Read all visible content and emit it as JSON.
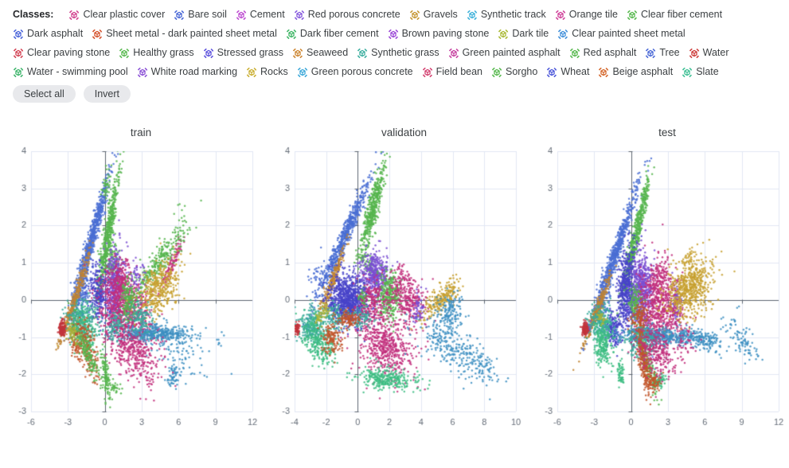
{
  "legend": {
    "label": "Classes:",
    "select_all_label": "Select all",
    "invert_label": "Invert",
    "items": [
      {
        "name": "Clear plastic cover",
        "color": "#d13f8e"
      },
      {
        "name": "Bare soil",
        "color": "#4766d6"
      },
      {
        "name": "Cement",
        "color": "#bd4ad1"
      },
      {
        "name": "Red porous concrete",
        "color": "#8558dd"
      },
      {
        "name": "Gravels",
        "color": "#c49530"
      },
      {
        "name": "Synthetic track",
        "color": "#3cb0d9"
      },
      {
        "name": "Orange tile",
        "color": "#cf3f99"
      },
      {
        "name": "Clear fiber cement",
        "color": "#55b84c"
      },
      {
        "name": "Dark asphalt",
        "color": "#4762d9"
      },
      {
        "name": "Sheet metal - dark painted sheet metal",
        "color": "#d4502a"
      },
      {
        "name": "Dark fiber cement",
        "color": "#3db564"
      },
      {
        "name": "Brown paving stone",
        "color": "#9a46d6"
      },
      {
        "name": "Dark tile",
        "color": "#a9b831"
      },
      {
        "name": "Clear painted sheet metal",
        "color": "#3e8ed9"
      },
      {
        "name": "Clear paving stone",
        "color": "#d24052"
      },
      {
        "name": "Healthy grass",
        "color": "#55b84c"
      },
      {
        "name": "Stressed grass",
        "color": "#5b50dd"
      },
      {
        "name": "Seaweed",
        "color": "#cc842e"
      },
      {
        "name": "Synthetic grass",
        "color": "#39ad9e"
      },
      {
        "name": "Green painted asphalt",
        "color": "#c53f9f"
      },
      {
        "name": "Red asphalt",
        "color": "#55b84c"
      },
      {
        "name": "Tree",
        "color": "#4766d6"
      },
      {
        "name": "Water",
        "color": "#cc3a38"
      },
      {
        "name": "Water - swimming pool",
        "color": "#3cb46a"
      },
      {
        "name": "White road marking",
        "color": "#8a4fd6"
      },
      {
        "name": "Rocks",
        "color": "#c9ae2f"
      },
      {
        "name": "Green porous concrete",
        "color": "#3aa7d9"
      },
      {
        "name": "Field bean",
        "color": "#d23f6f"
      },
      {
        "name": "Sorgho",
        "color": "#55b84c"
      },
      {
        "name": "Wheat",
        "color": "#4a55d9"
      },
      {
        "name": "Beige asphalt",
        "color": "#d4662a"
      },
      {
        "name": "Slate",
        "color": "#3bbf93"
      }
    ]
  },
  "style": {
    "grid_color": "#e2e7f3",
    "zero_line_color": "#5d6570",
    "tick_label_color": "#666e79",
    "point_radius": 1.25,
    "point_alpha": 0.85,
    "palette": {
      "blue": "#4a6fd4",
      "green": "#56b54e",
      "bronze": "#c08433",
      "gold": "#c7a02f",
      "purple": "#7a4fd2",
      "indigo": "#4843c9",
      "magenta": "#c22f7d",
      "steel": "#3d8fc2",
      "teal": "#3aa99b",
      "mint": "#3dbd82",
      "red": "#c2343c",
      "orangered": "#c2562c",
      "olive": "#a8b33a"
    }
  },
  "chart_data": {
    "type": "scatter",
    "note": "2-D embedding scatter of pixel classes, split by dataset partition. Dense point clouds are encoded as generative gaussian clusters.",
    "cluster_format": [
      "color",
      "cx",
      "cy",
      "sigma_along",
      "sigma_across",
      "rot_deg",
      "n_points"
    ],
    "legend_position": "top",
    "grid": true,
    "charts": [
      {
        "title": "train",
        "xlim": [
          -6,
          12
        ],
        "ylim": [
          -3,
          4
        ],
        "xticks": [
          -6,
          -3,
          0,
          3,
          6,
          9,
          12
        ],
        "yticks": [
          -3,
          -2,
          -1,
          0,
          1,
          2,
          3,
          4
        ],
        "clusters": [
          [
            "blue",
            -1.1,
            1.6,
            1.15,
            0.14,
            50,
            650
          ],
          [
            "blue",
            -1.9,
            0.25,
            0.45,
            0.3,
            50,
            180
          ],
          [
            "green",
            0.25,
            1.7,
            1.0,
            0.16,
            64,
            480
          ],
          [
            "green",
            0.55,
            1.1,
            0.3,
            0.45,
            64,
            140
          ],
          [
            "green",
            0.1,
            3.1,
            0.25,
            0.12,
            55,
            40
          ],
          [
            "bronze",
            -2.6,
            -0.15,
            0.8,
            0.09,
            42,
            240
          ],
          [
            "bronze",
            -1.7,
            0.9,
            0.5,
            0.1,
            42,
            50
          ],
          [
            "purple",
            0.8,
            0.4,
            0.5,
            0.35,
            80,
            420
          ],
          [
            "indigo",
            -0.55,
            0.2,
            0.35,
            0.4,
            70,
            240
          ],
          [
            "magenta",
            1.6,
            -0.35,
            1.05,
            0.5,
            -8,
            850
          ],
          [
            "magenta",
            1.15,
            0.55,
            0.5,
            0.28,
            0,
            180
          ],
          [
            "magenta",
            5.5,
            1.0,
            0.55,
            0.12,
            35,
            110
          ],
          [
            "green",
            4.4,
            1.0,
            1.2,
            0.17,
            23,
            260
          ],
          [
            "green",
            6.4,
            2.1,
            0.35,
            0.3,
            0,
            20
          ],
          [
            "green",
            1.9,
            0.0,
            0.32,
            0.3,
            0,
            170
          ],
          [
            "gold",
            4.4,
            0.3,
            0.85,
            0.33,
            12,
            380
          ],
          [
            "gold",
            -2.5,
            -0.72,
            0.4,
            0.16,
            10,
            80
          ],
          [
            "steel",
            4.0,
            -0.92,
            1.6,
            0.11,
            0,
            400
          ],
          [
            "steel",
            5.6,
            -1.25,
            1.4,
            0.35,
            -10,
            110
          ],
          [
            "steel",
            5.6,
            -2.05,
            0.28,
            0.14,
            0,
            60
          ],
          [
            "steel",
            9.3,
            -1.15,
            0.15,
            0.08,
            0,
            6
          ],
          [
            "teal",
            -1.9,
            -0.55,
            0.7,
            0.26,
            0,
            240
          ],
          [
            "teal",
            2.9,
            -0.5,
            0.5,
            0.25,
            0,
            130
          ],
          [
            "teal",
            0.9,
            -0.7,
            0.4,
            0.2,
            0,
            90
          ],
          [
            "mint",
            -1.6,
            -0.85,
            0.5,
            0.3,
            -20,
            150
          ],
          [
            "red",
            -3.5,
            -0.78,
            0.14,
            0.1,
            0,
            110
          ],
          [
            "orangered",
            -1.4,
            -1.35,
            0.5,
            0.28,
            -40,
            170
          ],
          [
            "orangered",
            -2.3,
            -1.15,
            0.3,
            0.22,
            -30,
            80
          ],
          [
            "green",
            -1.4,
            -1.45,
            0.7,
            0.16,
            -35,
            150
          ],
          [
            "green",
            0.1,
            -2.0,
            0.38,
            0.13,
            -70,
            110
          ],
          [
            "green",
            0.85,
            -2.35,
            0.2,
            0.1,
            0,
            25
          ],
          [
            "magenta",
            2.2,
            -1.45,
            0.95,
            0.36,
            -14,
            260
          ],
          [
            "magenta",
            4.0,
            -1.6,
            0.7,
            0.4,
            0,
            50
          ],
          [
            "purple",
            2.6,
            0.65,
            0.3,
            0.2,
            20,
            45
          ],
          [
            "olive",
            -2.6,
            -0.9,
            0.2,
            0.12,
            0,
            40
          ]
        ]
      },
      {
        "title": "validation",
        "xlim": [
          -4,
          10
        ],
        "ylim": [
          -3,
          4
        ],
        "xticks": [
          -4,
          -2,
          0,
          2,
          4,
          6,
          8,
          10
        ],
        "yticks": [
          -3,
          -2,
          -1,
          0,
          1,
          2,
          3,
          4
        ],
        "clusters": [
          [
            "blue",
            -0.85,
            1.7,
            1.1,
            0.13,
            44,
            620
          ],
          [
            "blue",
            -2.6,
            0.55,
            0.3,
            0.25,
            44,
            45
          ],
          [
            "green",
            0.95,
            2.45,
            0.62,
            0.16,
            58,
            430
          ],
          [
            "green",
            0.55,
            1.0,
            0.14,
            0.35,
            70,
            70
          ],
          [
            "bronze",
            -1.55,
            0.55,
            0.55,
            0.1,
            47,
            210
          ],
          [
            "indigo",
            -0.6,
            0.0,
            0.62,
            0.34,
            0,
            850
          ],
          [
            "purple",
            1.1,
            0.68,
            0.45,
            0.3,
            0,
            420
          ],
          [
            "green",
            2.0,
            0.12,
            0.38,
            0.3,
            0,
            320
          ],
          [
            "green",
            0.35,
            0.02,
            0.15,
            0.12,
            0,
            50
          ],
          [
            "magenta",
            0.9,
            -0.12,
            0.5,
            0.3,
            0,
            240
          ],
          [
            "magenta",
            3.2,
            0.0,
            0.6,
            0.35,
            -10,
            300
          ],
          [
            "magenta",
            1.75,
            -1.25,
            0.95,
            0.38,
            -8,
            520
          ],
          [
            "magenta",
            2.7,
            0.6,
            0.2,
            0.15,
            0,
            35
          ],
          [
            "purple",
            3.85,
            -0.25,
            0.2,
            0.18,
            0,
            60
          ],
          [
            "gold",
            5.3,
            0.02,
            0.6,
            0.16,
            20,
            220
          ],
          [
            "steel",
            5.85,
            -0.35,
            0.38,
            0.26,
            0,
            160
          ],
          [
            "steel",
            6.0,
            -1.3,
            1.3,
            0.3,
            -14,
            260
          ],
          [
            "steel",
            7.9,
            -1.8,
            0.4,
            0.2,
            -10,
            40
          ],
          [
            "teal",
            -2.9,
            -0.7,
            0.45,
            0.28,
            0,
            240
          ],
          [
            "teal",
            -1.5,
            -0.5,
            0.4,
            0.2,
            0,
            120
          ],
          [
            "teal",
            0.2,
            -0.5,
            0.3,
            0.14,
            0,
            70
          ],
          [
            "mint",
            -2.6,
            -1.05,
            0.5,
            0.28,
            -15,
            200
          ],
          [
            "mint",
            1.8,
            -2.12,
            0.95,
            0.14,
            -4,
            300
          ],
          [
            "mint",
            -1.9,
            -1.3,
            0.3,
            0.2,
            0,
            60
          ],
          [
            "red",
            -3.85,
            -0.8,
            0.1,
            0.08,
            0,
            70
          ],
          [
            "orangered",
            -1.6,
            -1.05,
            0.35,
            0.2,
            0,
            130
          ],
          [
            "orangered",
            -0.55,
            -0.5,
            0.4,
            0.13,
            0,
            110
          ],
          [
            "olive",
            -2.1,
            -0.3,
            0.15,
            0.1,
            0,
            30
          ],
          [
            "olive",
            -2.5,
            -0.5,
            0.13,
            0.09,
            0,
            25
          ]
        ]
      },
      {
        "title": "test",
        "xlim": [
          -6,
          12
        ],
        "ylim": [
          -3,
          4
        ],
        "xticks": [
          -6,
          -3,
          0,
          3,
          6,
          9,
          12
        ],
        "yticks": [
          -3,
          -2,
          -1,
          0,
          1,
          2,
          3,
          4
        ],
        "clusters": [
          [
            "blue",
            -1.3,
            1.2,
            1.2,
            0.14,
            44,
            620
          ],
          [
            "blue",
            0.45,
            3.0,
            0.2,
            0.15,
            44,
            18
          ],
          [
            "blue",
            -2.4,
            -0.1,
            0.4,
            0.25,
            44,
            120
          ],
          [
            "green",
            0.35,
            1.65,
            0.95,
            0.14,
            55,
            480
          ],
          [
            "green",
            1.1,
            2.9,
            0.18,
            0.12,
            55,
            25
          ],
          [
            "bronze",
            -2.8,
            -0.3,
            0.78,
            0.09,
            40,
            240
          ],
          [
            "indigo",
            -0.35,
            0.3,
            0.55,
            0.35,
            75,
            550
          ],
          [
            "purple",
            0.85,
            0.2,
            0.55,
            0.42,
            80,
            600
          ],
          [
            "purple",
            3.7,
            -0.05,
            0.16,
            0.3,
            0,
            80
          ],
          [
            "purple",
            -3.45,
            -0.72,
            0.12,
            0.08,
            0,
            25
          ],
          [
            "indigo",
            -1.45,
            -0.8,
            0.3,
            0.22,
            0,
            150
          ],
          [
            "magenta",
            2.5,
            -0.2,
            0.85,
            0.5,
            -8,
            600
          ],
          [
            "magenta",
            2.2,
            0.6,
            0.4,
            0.25,
            20,
            120
          ],
          [
            "gold",
            4.7,
            0.35,
            0.95,
            0.4,
            8,
            600
          ],
          [
            "gold",
            4.8,
            1.05,
            0.3,
            0.15,
            0,
            25
          ],
          [
            "steel",
            2.6,
            -0.97,
            1.9,
            0.1,
            -1,
            520
          ],
          [
            "steel",
            6.1,
            -1.12,
            0.7,
            0.14,
            -8,
            110
          ],
          [
            "steel",
            9.2,
            -1.15,
            0.55,
            0.2,
            -18,
            70
          ],
          [
            "steel",
            8.3,
            -0.7,
            0.7,
            0.25,
            0,
            20
          ],
          [
            "teal",
            -2.5,
            -0.55,
            0.5,
            0.25,
            0,
            220
          ],
          [
            "teal",
            0.9,
            -1.1,
            0.7,
            0.25,
            0,
            220
          ],
          [
            "mint",
            -2.3,
            -1.15,
            0.38,
            0.3,
            0,
            230
          ],
          [
            "mint",
            -0.85,
            -2.0,
            0.12,
            0.18,
            0,
            55
          ],
          [
            "mint",
            2.2,
            -2.2,
            0.28,
            0.12,
            0,
            70
          ],
          [
            "green",
            0.3,
            -0.1,
            0.25,
            0.25,
            0,
            100
          ],
          [
            "green",
            1.3,
            -1.7,
            0.55,
            0.16,
            -50,
            140
          ],
          [
            "red",
            -3.75,
            -0.78,
            0.13,
            0.09,
            0,
            100
          ],
          [
            "orangered",
            1.0,
            -1.6,
            0.5,
            0.18,
            -60,
            220
          ],
          [
            "orangered",
            1.85,
            -2.2,
            0.3,
            0.13,
            0,
            80
          ],
          [
            "orangered",
            0.75,
            -0.45,
            0.35,
            0.18,
            0,
            110
          ],
          [
            "olive",
            -2.4,
            -0.5,
            0.15,
            0.1,
            0,
            30
          ],
          [
            "magenta",
            2.0,
            -1.35,
            0.8,
            0.35,
            -12,
            260
          ],
          [
            "magenta",
            4.5,
            -1.1,
            0.5,
            0.3,
            0,
            45
          ]
        ]
      }
    ]
  }
}
